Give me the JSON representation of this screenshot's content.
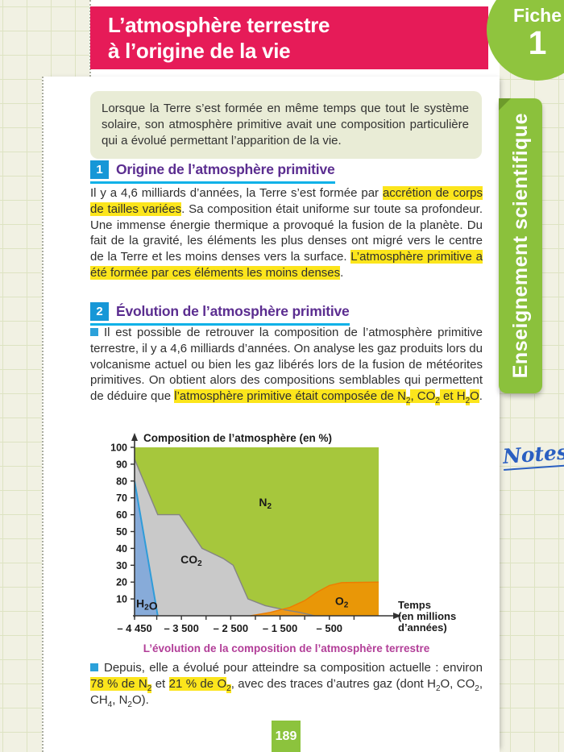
{
  "page": {
    "header": {
      "title_line1": "L’atmosphère terrestre",
      "title_line2": "à l’origine de la vie",
      "fiche_label": "Fiche",
      "fiche_number": "1"
    },
    "sidebar": {
      "tab_label": "Enseignement scientifique",
      "notes_label": "Notes"
    },
    "intro_text": "Lorsque la Terre s’est formée en même temps que tout le système solaire, son atmosphère primitive avait une composition particulière qui a évolué permettant l’apparition de la vie.",
    "sections": [
      {
        "number": "1",
        "title": "Origine de l’atmosphère primitive"
      },
      {
        "number": "2",
        "title": "Évolution de l’atmosphère primitive"
      }
    ],
    "page_number": "189",
    "colors": {
      "banner_pink": "#e61b58",
      "fiche_green": "#8fc43e",
      "tab_green": "#8bc13c",
      "highlight_yellow": "#fce51c",
      "heading_purple": "#5b2d90",
      "heading_square_blue": "#1697d7",
      "underline_cyan": "#0db1e8",
      "caption_magenta": "#b23e98",
      "notes_blue": "#2a5fc1",
      "page_number_green": "#8cc33d"
    }
  },
  "rich": {
    "p1": [
      {
        "t": "Il y a 4,6 milliards d’années, la Terre s’est formée par "
      },
      {
        "t": "accrétion de corps de tailles variées",
        "hl": true
      },
      {
        "t": ". Sa composition était uniforme sur toute sa profondeur. Une immense énergie thermique a provoqué la fusion de la planète. Du fait de la gravité, les éléments les plus denses ont migré vers le centre de la Terre et les moins denses vers la surface. "
      },
      {
        "t": "L’atmosphère primitive a été formée par ces éléments les moins denses",
        "hl": true
      },
      {
        "t": "."
      }
    ],
    "p2": [
      {
        "t": "Il est possible de retrouver la composition de l’atmosphère primitive terrestre, il y a 4,6 milliards d’années. On analyse les gaz produits lors du volcanisme actuel ou bien les gaz libérés lors de la fusion de météorites primitives. On obtient alors des compositions semblables qui permettent de déduire que "
      },
      {
        "t": "l’atmosphère primitive était composée de N",
        "hl": true
      },
      {
        "t": "2",
        "hl": true,
        "sub": true
      },
      {
        "t": ", CO",
        "hl": true
      },
      {
        "t": "2",
        "hl": true,
        "sub": true
      },
      {
        "t": " et H",
        "hl": true
      },
      {
        "t": "2",
        "hl": true,
        "sub": true
      },
      {
        "t": "O",
        "hl": true
      },
      {
        "t": "."
      }
    ],
    "p3": [
      {
        "t": "Depuis, elle a évolué pour atteindre sa composition actuelle : environ "
      },
      {
        "t": "78 % de N",
        "hl": true
      },
      {
        "t": "2",
        "hl": true,
        "sub": true
      },
      {
        "t": " et "
      },
      {
        "t": "21 % de O",
        "hl": true
      },
      {
        "t": "2",
        "hl": true,
        "sub": true
      },
      {
        "t": ", avec des traces d’autres gaz (dont H"
      },
      {
        "t": "2",
        "sub": true
      },
      {
        "t": "O, CO"
      },
      {
        "t": "2",
        "sub": true
      },
      {
        "t": ", CH"
      },
      {
        "t": "4",
        "sub": true
      },
      {
        "t": ", N"
      },
      {
        "t": "2",
        "sub": true
      },
      {
        "t": "O)."
      }
    ]
  },
  "chart_data": {
    "type": "area",
    "stacked": false,
    "title": "Composition de l’atmosphère (en %)",
    "xlabel_lines": [
      "Temps",
      "(en millions",
      "d’années)"
    ],
    "caption": "L’évolution de la composition de l’atmosphère terrestre",
    "ylim": [
      0,
      100
    ],
    "xlim": [
      -4450,
      500
    ],
    "y_ticks": [
      10,
      20,
      30,
      40,
      50,
      60,
      70,
      80,
      90,
      100
    ],
    "x_ticks": [
      -4450,
      -4000,
      -3500,
      -3000,
      -2500,
      -2000,
      -1500,
      -1000,
      -500,
      0
    ],
    "x_tick_labels": [
      {
        "x": -4450,
        "label": "– 4 450"
      },
      {
        "x": -3500,
        "label": "– 3 500"
      },
      {
        "x": -2500,
        "label": "– 2 500"
      },
      {
        "x": -1500,
        "label": "– 1 500"
      },
      {
        "x": -500,
        "label": "– 500"
      }
    ],
    "series": [
      {
        "name": "N2",
        "label_parts": [
          {
            "t": "N"
          },
          {
            "t": "2",
            "sub": true
          }
        ],
        "color": "#a6c73c",
        "points": [
          [
            -4450,
            100
          ],
          [
            500,
            100
          ]
        ],
        "label_pos": [
          -1800,
          65
        ]
      },
      {
        "name": "CO2",
        "label_parts": [
          {
            "t": "CO"
          },
          {
            "t": "2",
            "sub": true
          }
        ],
        "color": "#c9c9c9",
        "stroke": "#848484",
        "points": [
          [
            -4450,
            93
          ],
          [
            -3980,
            60
          ],
          [
            -3540,
            60
          ],
          [
            -3080,
            40
          ],
          [
            -2650,
            34
          ],
          [
            -2450,
            30
          ],
          [
            -2150,
            10
          ],
          [
            -1800,
            6
          ],
          [
            -1400,
            3.5
          ],
          [
            -1100,
            2
          ],
          [
            -800,
            0
          ]
        ],
        "label_pos": [
          -3300,
          31
        ]
      },
      {
        "name": "O2",
        "label_parts": [
          {
            "t": "O"
          },
          {
            "t": "2",
            "sub": true
          }
        ],
        "color": "#f29100",
        "stroke": "#ed7c00",
        "opacity": 0.88,
        "points": [
          [
            -2100,
            0
          ],
          [
            -1700,
            2
          ],
          [
            -1300,
            5
          ],
          [
            -1000,
            9
          ],
          [
            -750,
            14
          ],
          [
            -500,
            18
          ],
          [
            -250,
            19.7
          ],
          [
            0,
            19.8
          ],
          [
            500,
            20
          ]
        ],
        "label_pos": [
          -250,
          6.5
        ]
      },
      {
        "name": "H2O",
        "label_parts": [
          {
            "t": "H"
          },
          {
            "t": "2",
            "sub": true
          },
          {
            "t": "O"
          }
        ],
        "color": "#87abd9",
        "stroke": "#2f9cd9",
        "points": [
          [
            -4450,
            80
          ],
          [
            -3980,
            0
          ]
        ],
        "label_pos": [
          -4200,
          5
        ]
      }
    ]
  }
}
